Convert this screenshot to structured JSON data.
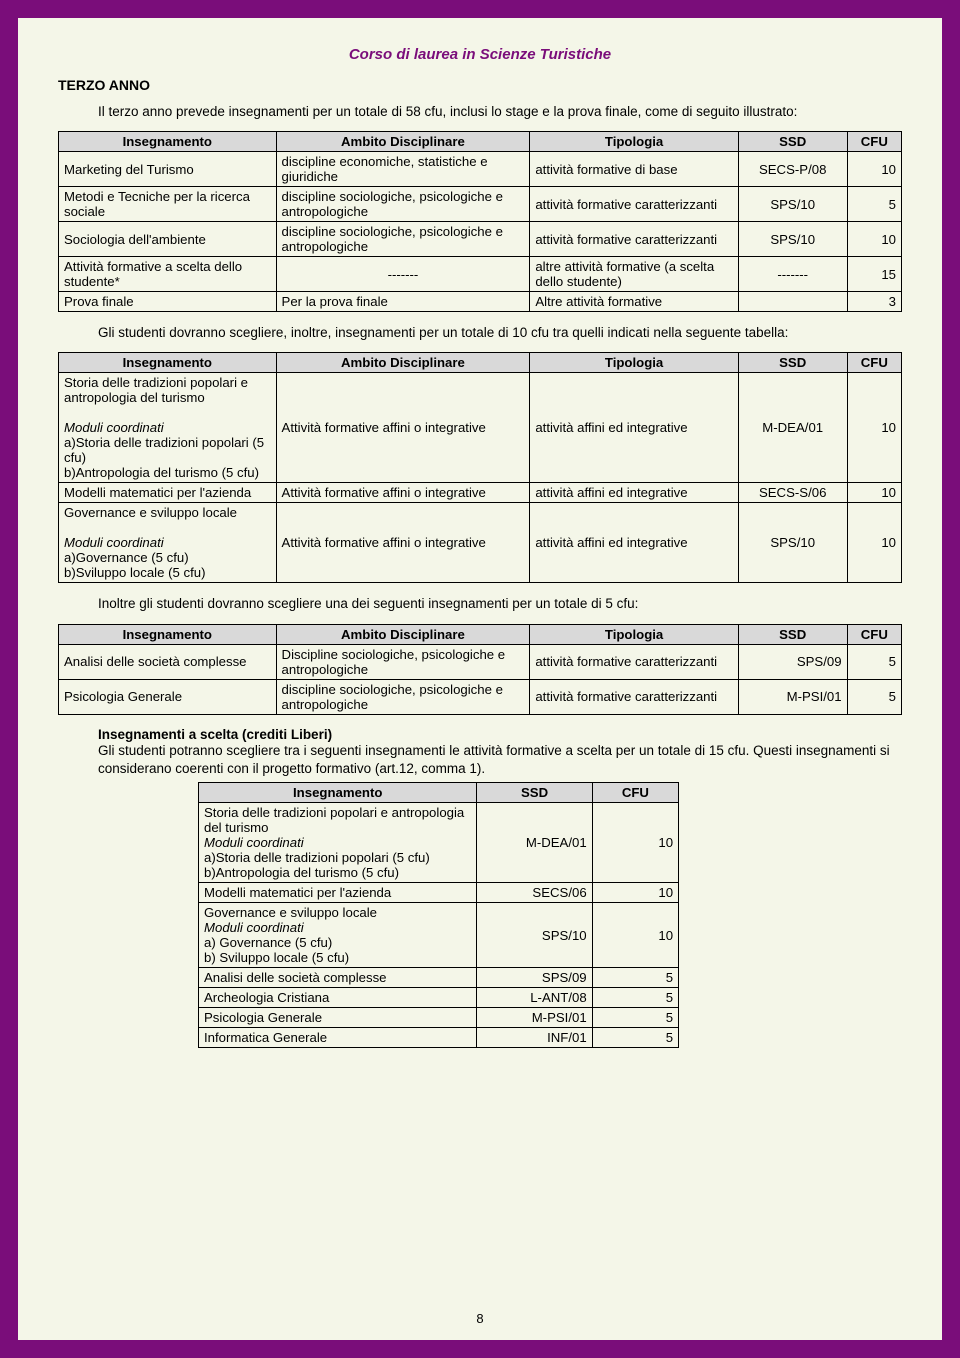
{
  "doc_title": "Corso di laurea in Scienze Turistiche",
  "section": "TERZO ANNO",
  "intro": "Il terzo anno prevede insegnamenti per un totale di 58 cfu, inclusi lo stage e la prova finale, come di seguito illustrato:",
  "headers": {
    "insegnamento": "Insegnamento",
    "ambito": "Ambito Disciplinare",
    "tipologia": "Tipologia",
    "ssd": "SSD",
    "cfu": "CFU"
  },
  "table1": [
    {
      "ins": "Marketing del Turismo",
      "amb": "discipline economiche, statistiche e giuridiche",
      "tip": "attività formative di base",
      "ssd": "SECS-P/08",
      "cfu": "10"
    },
    {
      "ins": "Metodi e Tecniche per la ricerca sociale",
      "amb": "discipline  sociologiche, psicologiche e antropologiche",
      "tip": "attività formative caratterizzanti",
      "ssd": "SPS/10",
      "cfu": "5"
    },
    {
      "ins": "Sociologia dell'ambiente",
      "amb": "discipline sociologiche, psicologiche e antropologiche",
      "tip": "attività formative caratterizzanti",
      "ssd": "SPS/10",
      "cfu": "10"
    },
    {
      "ins": "Attività formative  a scelta dello studente*",
      "amb": "-------",
      "tip": "altre attività formative (a scelta dello studente)",
      "ssd": "-------",
      "cfu": "15"
    },
    {
      "ins": "Prova finale",
      "amb": "Per la prova finale",
      "tip": "Altre attività formative",
      "ssd": "",
      "cfu": "3"
    }
  ],
  "para2": "Gli studenti dovranno scegliere, inoltre, insegnamenti per un totale di 10 cfu tra quelli indicati nella seguente tabella:",
  "table2": [
    {
      "ins_main": "Storia delle tradizioni popolari e antropologia del turismo",
      "ins_mod": "Moduli coordinati",
      "ins_sub": "a)Storia delle tradizioni popolari (5 cfu)\nb)Antropologia del turismo (5 cfu)",
      "amb": "Attività formative affini o integrative",
      "tip": "attività affini ed integrative",
      "ssd": "M-DEA/01",
      "cfu": "10"
    },
    {
      "ins_main": "Modelli matematici per l'azienda",
      "ins_mod": "",
      "ins_sub": "",
      "amb": "Attività formative affini o integrative",
      "tip": "attività affini ed integrative",
      "ssd": "SECS-S/06",
      "cfu": "10"
    },
    {
      "ins_main": "Governance e sviluppo locale",
      "ins_mod": "Moduli coordinati",
      "ins_sub": "a)Governance  (5 cfu)\nb)Sviluppo locale (5 cfu)",
      "amb": "Attività formative affini o integrative",
      "tip": "attività affini ed integrative",
      "ssd": "SPS/10",
      "cfu": "10"
    }
  ],
  "para3": "Inoltre gli studenti dovranno scegliere una dei seguenti insegnamenti per un totale di 5 cfu:",
  "table3": [
    {
      "ins": "Analisi delle società complesse",
      "amb": "Discipline  sociologiche, psicologiche e antropologiche",
      "tip": "attività formative caratterizzanti",
      "ssd": "SPS/09",
      "cfu": "5"
    },
    {
      "ins": "Psicologia Generale",
      "amb": "discipline  sociologiche, psicologiche e antropologiche",
      "tip": "attività formative caratterizzanti",
      "ssd": "M-PSI/01",
      "cfu": "5"
    }
  ],
  "free_head": "Insegnamenti a scelta  (crediti Liberi)",
  "free_para": "Gli studenti potranno scegliere tra i  seguenti insegnamenti le attività formative a scelta  per un totale di 15 cfu. Questi insegnamenti si considerano coerenti con il progetto formativo (art.12, comma 1).",
  "table4": [
    {
      "ins_main": "Storia delle tradizioni popolari e antropologia del turismo",
      "ins_mod": "Moduli coordinati",
      "ins_sub": "a)Storia delle tradizioni popolari (5 cfu)\nb)Antropologia del turismo (5 cfu)",
      "ssd": "M-DEA/01",
      "cfu": "10"
    },
    {
      "ins_main": "Modelli matematici per l'azienda",
      "ins_mod": "",
      "ins_sub": "",
      "ssd": "SECS/06",
      "cfu": "10"
    },
    {
      "ins_main": "Governance e sviluppo locale",
      "ins_mod": "Moduli coordinati",
      "ins_sub": "a) Governance  (5 cfu)\nb) Sviluppo locale (5 cfu)",
      "ssd": "SPS/10",
      "cfu": "10"
    },
    {
      "ins_main": "Analisi delle società complesse",
      "ins_mod": "",
      "ins_sub": "",
      "ssd": "SPS/09",
      "cfu": "5"
    },
    {
      "ins_main": "Archeologia Cristiana",
      "ins_mod": "",
      "ins_sub": "",
      "ssd": "L-ANT/08",
      "cfu": "5"
    },
    {
      "ins_main": "Psicologia Generale",
      "ins_mod": "",
      "ins_sub": "",
      "ssd": "M-PSI/01",
      "cfu": "5"
    },
    {
      "ins_main": "Informatica Generale",
      "ins_mod": "",
      "ins_sub": "",
      "ssd": "INF/01",
      "cfu": "5"
    }
  ],
  "pagenum": "8",
  "colwidths": {
    "t_main": [
      "24%",
      "28%",
      "23%",
      "12%",
      "6%"
    ],
    "t_free": [
      "58%",
      "24%",
      "18%"
    ]
  }
}
